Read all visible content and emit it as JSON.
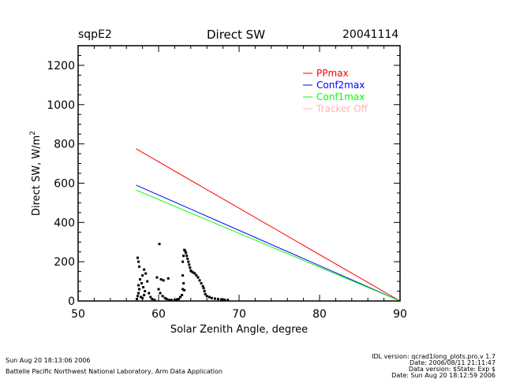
{
  "header": {
    "site": "sqpE2",
    "title": "Direct SW",
    "date": "20041114"
  },
  "chart_data": {
    "type": "line",
    "title": "Direct SW",
    "xlabel": "Solar Zenith Angle, degree",
    "ylabel": "Direct SW, W/m",
    "ylabel_superscript": "2",
    "xlim": [
      50,
      90
    ],
    "ylim": [
      0,
      1300
    ],
    "xticks": [
      50,
      60,
      70,
      80,
      90
    ],
    "yticks": [
      0,
      200,
      400,
      600,
      800,
      1000,
      1200
    ],
    "x_minor_step": 2,
    "y_minor_step": 50,
    "grid": false,
    "legend_position": "top-right",
    "series": [
      {
        "name": "PPmax",
        "color": "#ff0000",
        "x": [
          57.2,
          90
        ],
        "y": [
          775,
          0
        ]
      },
      {
        "name": "Conf2max",
        "color": "#0000ff",
        "x": [
          57.2,
          90
        ],
        "y": [
          590,
          0
        ]
      },
      {
        "name": "Conf1max",
        "color": "#00ff00",
        "x": [
          57.2,
          90
        ],
        "y": [
          565,
          0
        ]
      },
      {
        "name": "Tracker Off",
        "color": "#ffb6b6",
        "x": [],
        "y": []
      }
    ],
    "scatter": {
      "name": "observations",
      "color": "#000000",
      "points": [
        [
          57.3,
          10
        ],
        [
          57.4,
          25
        ],
        [
          57.5,
          40
        ],
        [
          57.6,
          60
        ],
        [
          57.5,
          80
        ],
        [
          57.8,
          20
        ],
        [
          58.0,
          15
        ],
        [
          58.2,
          30
        ],
        [
          58.3,
          50
        ],
        [
          58.1,
          70
        ],
        [
          57.9,
          90
        ],
        [
          57.7,
          110
        ],
        [
          57.5,
          200
        ],
        [
          57.6,
          175
        ],
        [
          57.4,
          220
        ],
        [
          58.2,
          160
        ],
        [
          58.4,
          140
        ],
        [
          58.0,
          130
        ],
        [
          58.6,
          100
        ],
        [
          58.8,
          40
        ],
        [
          59.0,
          20
        ],
        [
          59.2,
          10
        ],
        [
          59.5,
          5
        ],
        [
          59.8,
          120
        ],
        [
          60.0,
          60
        ],
        [
          60.2,
          40
        ],
        [
          60.5,
          25
        ],
        [
          60.8,
          15
        ],
        [
          61.0,
          10
        ],
        [
          61.3,
          5
        ],
        [
          61.6,
          5
        ],
        [
          62.0,
          5
        ],
        [
          62.3,
          8
        ],
        [
          60.1,
          290
        ],
        [
          60.3,
          110
        ],
        [
          60.6,
          105
        ],
        [
          61.2,
          115
        ],
        [
          62.5,
          10
        ],
        [
          62.7,
          20
        ],
        [
          62.9,
          30
        ],
        [
          63.0,
          60
        ],
        [
          63.1,
          90
        ],
        [
          63.0,
          130
        ],
        [
          63.2,
          55
        ],
        [
          63.2,
          260
        ],
        [
          63.3,
          255
        ],
        [
          63.4,
          245
        ],
        [
          63.5,
          230
        ],
        [
          63.6,
          215
        ],
        [
          63.7,
          200
        ],
        [
          63.8,
          185
        ],
        [
          63.9,
          170
        ],
        [
          64.0,
          155
        ],
        [
          64.1,
          150
        ],
        [
          64.3,
          145
        ],
        [
          64.5,
          140
        ],
        [
          64.7,
          130
        ],
        [
          64.9,
          120
        ],
        [
          65.1,
          105
        ],
        [
          65.3,
          90
        ],
        [
          65.5,
          75
        ],
        [
          65.6,
          65
        ],
        [
          65.7,
          50
        ],
        [
          65.8,
          35
        ],
        [
          66.0,
          25
        ],
        [
          66.3,
          20
        ],
        [
          66.6,
          15
        ],
        [
          67.0,
          12
        ],
        [
          67.4,
          10
        ],
        [
          67.8,
          8
        ],
        [
          68.2,
          6
        ],
        [
          68.6,
          5
        ],
        [
          63.1,
          230
        ],
        [
          63.0,
          200
        ]
      ]
    }
  },
  "footer": {
    "timestamp": "Sun Aug 20 18:13:06 2006",
    "credit": "Battelle Pacific Northwest National Laboratory, Arm Data Application",
    "idl_version": "IDL version: qcrad1long_plots.pro,v 1.7",
    "date_line": "Date: 2006/08/11 21:11:47",
    "data_version": "Data version: $State: Exp $",
    "run_date": "Date: Sun Aug 20 18:12:59 2006"
  }
}
